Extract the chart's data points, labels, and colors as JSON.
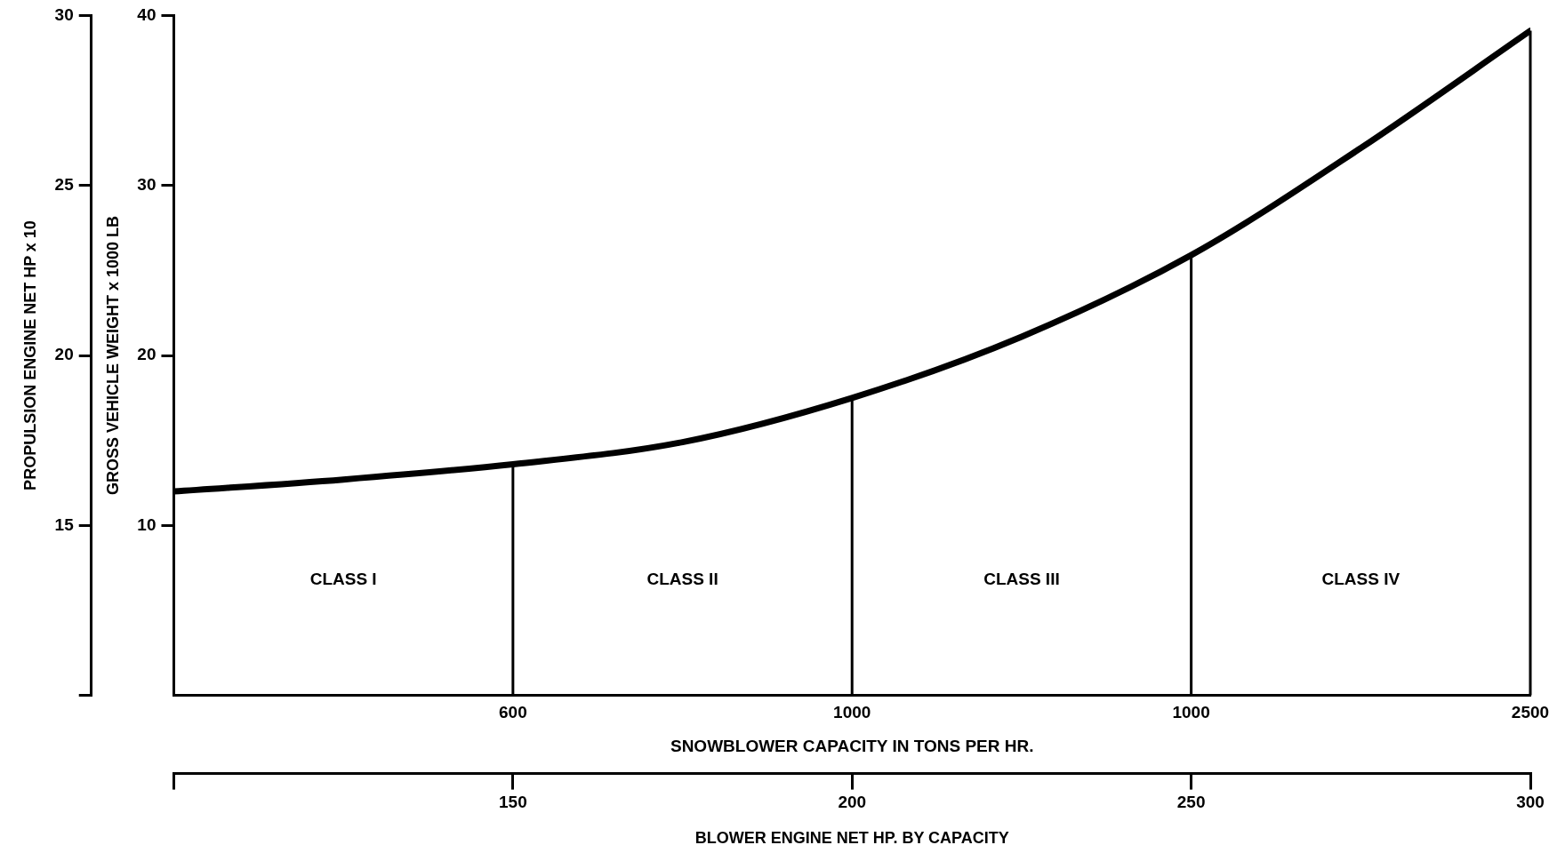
{
  "chart_data": {
    "type": "line",
    "xlabel": "BLOWER ENGINE NET HP. BY CAPACITY",
    "ylabel": "GROSS VEHICLE WEIGHT x 1000 LB",
    "y2label": "PROPULSION ENGINE NET HP x 10",
    "x": [
      100,
      125,
      150,
      175,
      200,
      225,
      250,
      275,
      300
    ],
    "series": [
      {
        "color": "#000000",
        "values": [
          12.0,
          12.7,
          13.6,
          14.9,
          17.5,
          21.1,
          25.9,
          32.2,
          39.1
        ]
      }
    ],
    "xlim": [
      100,
      300
    ],
    "xticks": [
      {
        "value": 100,
        "label": null
      },
      150,
      200,
      250,
      300
    ],
    "ylim": [
      0,
      40
    ],
    "yticks": [
      10,
      20,
      30,
      40
    ],
    "y2lim": [
      10,
      30
    ],
    "y2ticks": [
      {
        "value": 10,
        "label": null
      },
      15,
      20,
      25,
      30
    ],
    "ref_lines": [
      {
        "axis": "x",
        "value": 150
      },
      {
        "axis": "x",
        "value": 200
      },
      {
        "axis": "x",
        "value": 250
      },
      {
        "axis": "x",
        "value": 300
      }
    ],
    "annotations": [
      "CLASS I",
      "CLASS II",
      "CLASS III",
      "CLASS IV",
      "600",
      "1000",
      "1000",
      "2500",
      "SNOWBLOWER CAPACITY IN TONS PER HR."
    ],
    "grid": false,
    "legend": false,
    "marker": "none",
    "line_style": "solid"
  }
}
